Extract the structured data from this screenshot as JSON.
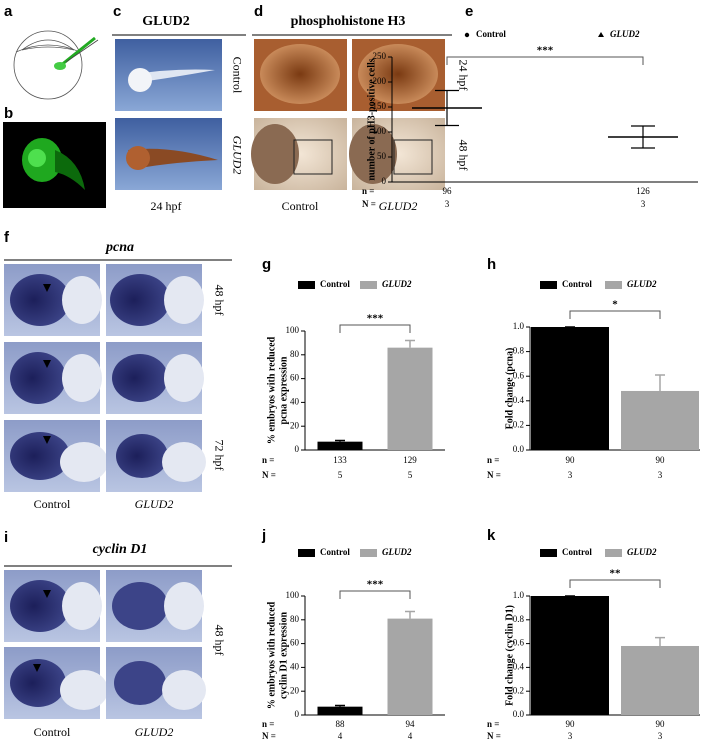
{
  "figure": {
    "panels": [
      {
        "letter": "a"
      },
      {
        "letter": "b"
      },
      {
        "letter": "c",
        "title": "GLUD2",
        "row_labels": [
          "Control",
          "GLUD2"
        ],
        "caption": "24 hpf"
      },
      {
        "letter": "d",
        "title": "phosphohistone H3",
        "row_labels": [
          "24 hpf",
          "48 hpf"
        ],
        "column_labels": [
          "Control",
          "GLUD2"
        ]
      },
      {
        "letter": "f",
        "title": "pcna",
        "row_labels": [
          "48 hpf",
          "72 hpf"
        ],
        "column_labels": [
          "Control",
          "GLUD2"
        ]
      },
      {
        "letter": "i",
        "title": "cyclin D1",
        "row_labels": [
          "48 hpf"
        ],
        "column_labels": [
          "Control",
          "GLUD2"
        ]
      }
    ]
  },
  "chart_data": [
    {
      "panel": "e",
      "type": "dot",
      "categories": [
        "Control",
        "GLUD2"
      ],
      "markers": [
        "circle",
        "triangle"
      ],
      "colors": [
        "#000000",
        "#000000"
      ],
      "values": [
        148,
        90
      ],
      "errors": [
        35,
        22
      ],
      "ylabel": [
        "number of pH3-positive cells"
      ],
      "ylim": [
        0,
        250
      ],
      "yticks": [
        0,
        50,
        100,
        150,
        200,
        250
      ],
      "significance": "***",
      "n_label": "n =",
      "N_label": "N =",
      "n": [
        96,
        126
      ],
      "N": [
        3,
        3
      ]
    },
    {
      "panel": "g",
      "type": "bar",
      "categories": [
        "Control",
        "GLUD2"
      ],
      "colors": [
        "#000000",
        "#a6a6a6"
      ],
      "values": [
        7,
        86
      ],
      "errors": [
        1,
        6
      ],
      "ylabel": [
        "% embryos with reduced",
        "pcna expression"
      ],
      "ylim": [
        0,
        100
      ],
      "yticks": [
        0,
        20,
        40,
        60,
        80,
        100
      ],
      "significance": "***",
      "n_label": "n =",
      "N_label": "N =",
      "n": [
        133,
        129
      ],
      "N": [
        5,
        5
      ]
    },
    {
      "panel": "h",
      "type": "bar",
      "categories": [
        "Control",
        "GLUD2"
      ],
      "colors": [
        "#000000",
        "#a6a6a6"
      ],
      "values": [
        1.0,
        0.48
      ],
      "errors": [
        0,
        0.13
      ],
      "ylabel": [
        "Fold change (pcna)"
      ],
      "ylim": [
        0,
        1.0
      ],
      "yticks": [
        {
          "value": 0,
          "label": "0.0"
        },
        0.2,
        0.4,
        0.6,
        0.8,
        {
          "value": 1.0,
          "label": "1.0"
        }
      ],
      "significance": "*",
      "n_label": "n =",
      "N_label": "N =",
      "n": [
        90,
        90
      ],
      "N": [
        3,
        3
      ]
    },
    {
      "panel": "j",
      "type": "bar",
      "categories": [
        "Control",
        "GLUD2"
      ],
      "colors": [
        "#000000",
        "#a6a6a6"
      ],
      "values": [
        7,
        81
      ],
      "errors": [
        1,
        6
      ],
      "ylabel": [
        "% embryos with reduced",
        "cyclin D1 expression"
      ],
      "ylim": [
        0,
        100
      ],
      "yticks": [
        0,
        20,
        40,
        60,
        80,
        100
      ],
      "significance": "***",
      "n_label": "n =",
      "N_label": "N =",
      "n": [
        88,
        94
      ],
      "N": [
        4,
        4
      ]
    },
    {
      "panel": "k",
      "type": "bar",
      "categories": [
        "Control",
        "GLUD2"
      ],
      "colors": [
        "#000000",
        "#a6a6a6"
      ],
      "values": [
        1.0,
        0.58
      ],
      "errors": [
        0,
        0.07
      ],
      "ylabel": [
        "Fold change (cyclin D1)"
      ],
      "ylim": [
        0,
        1.0
      ],
      "yticks": [
        {
          "value": 0,
          "label": "0.0"
        },
        0.2,
        0.4,
        0.6,
        0.8,
        {
          "value": 1.0,
          "label": "1.0"
        }
      ],
      "significance": "**",
      "n_label": "n =",
      "N_label": "N =",
      "n": [
        90,
        90
      ],
      "N": [
        3,
        3
      ]
    }
  ]
}
